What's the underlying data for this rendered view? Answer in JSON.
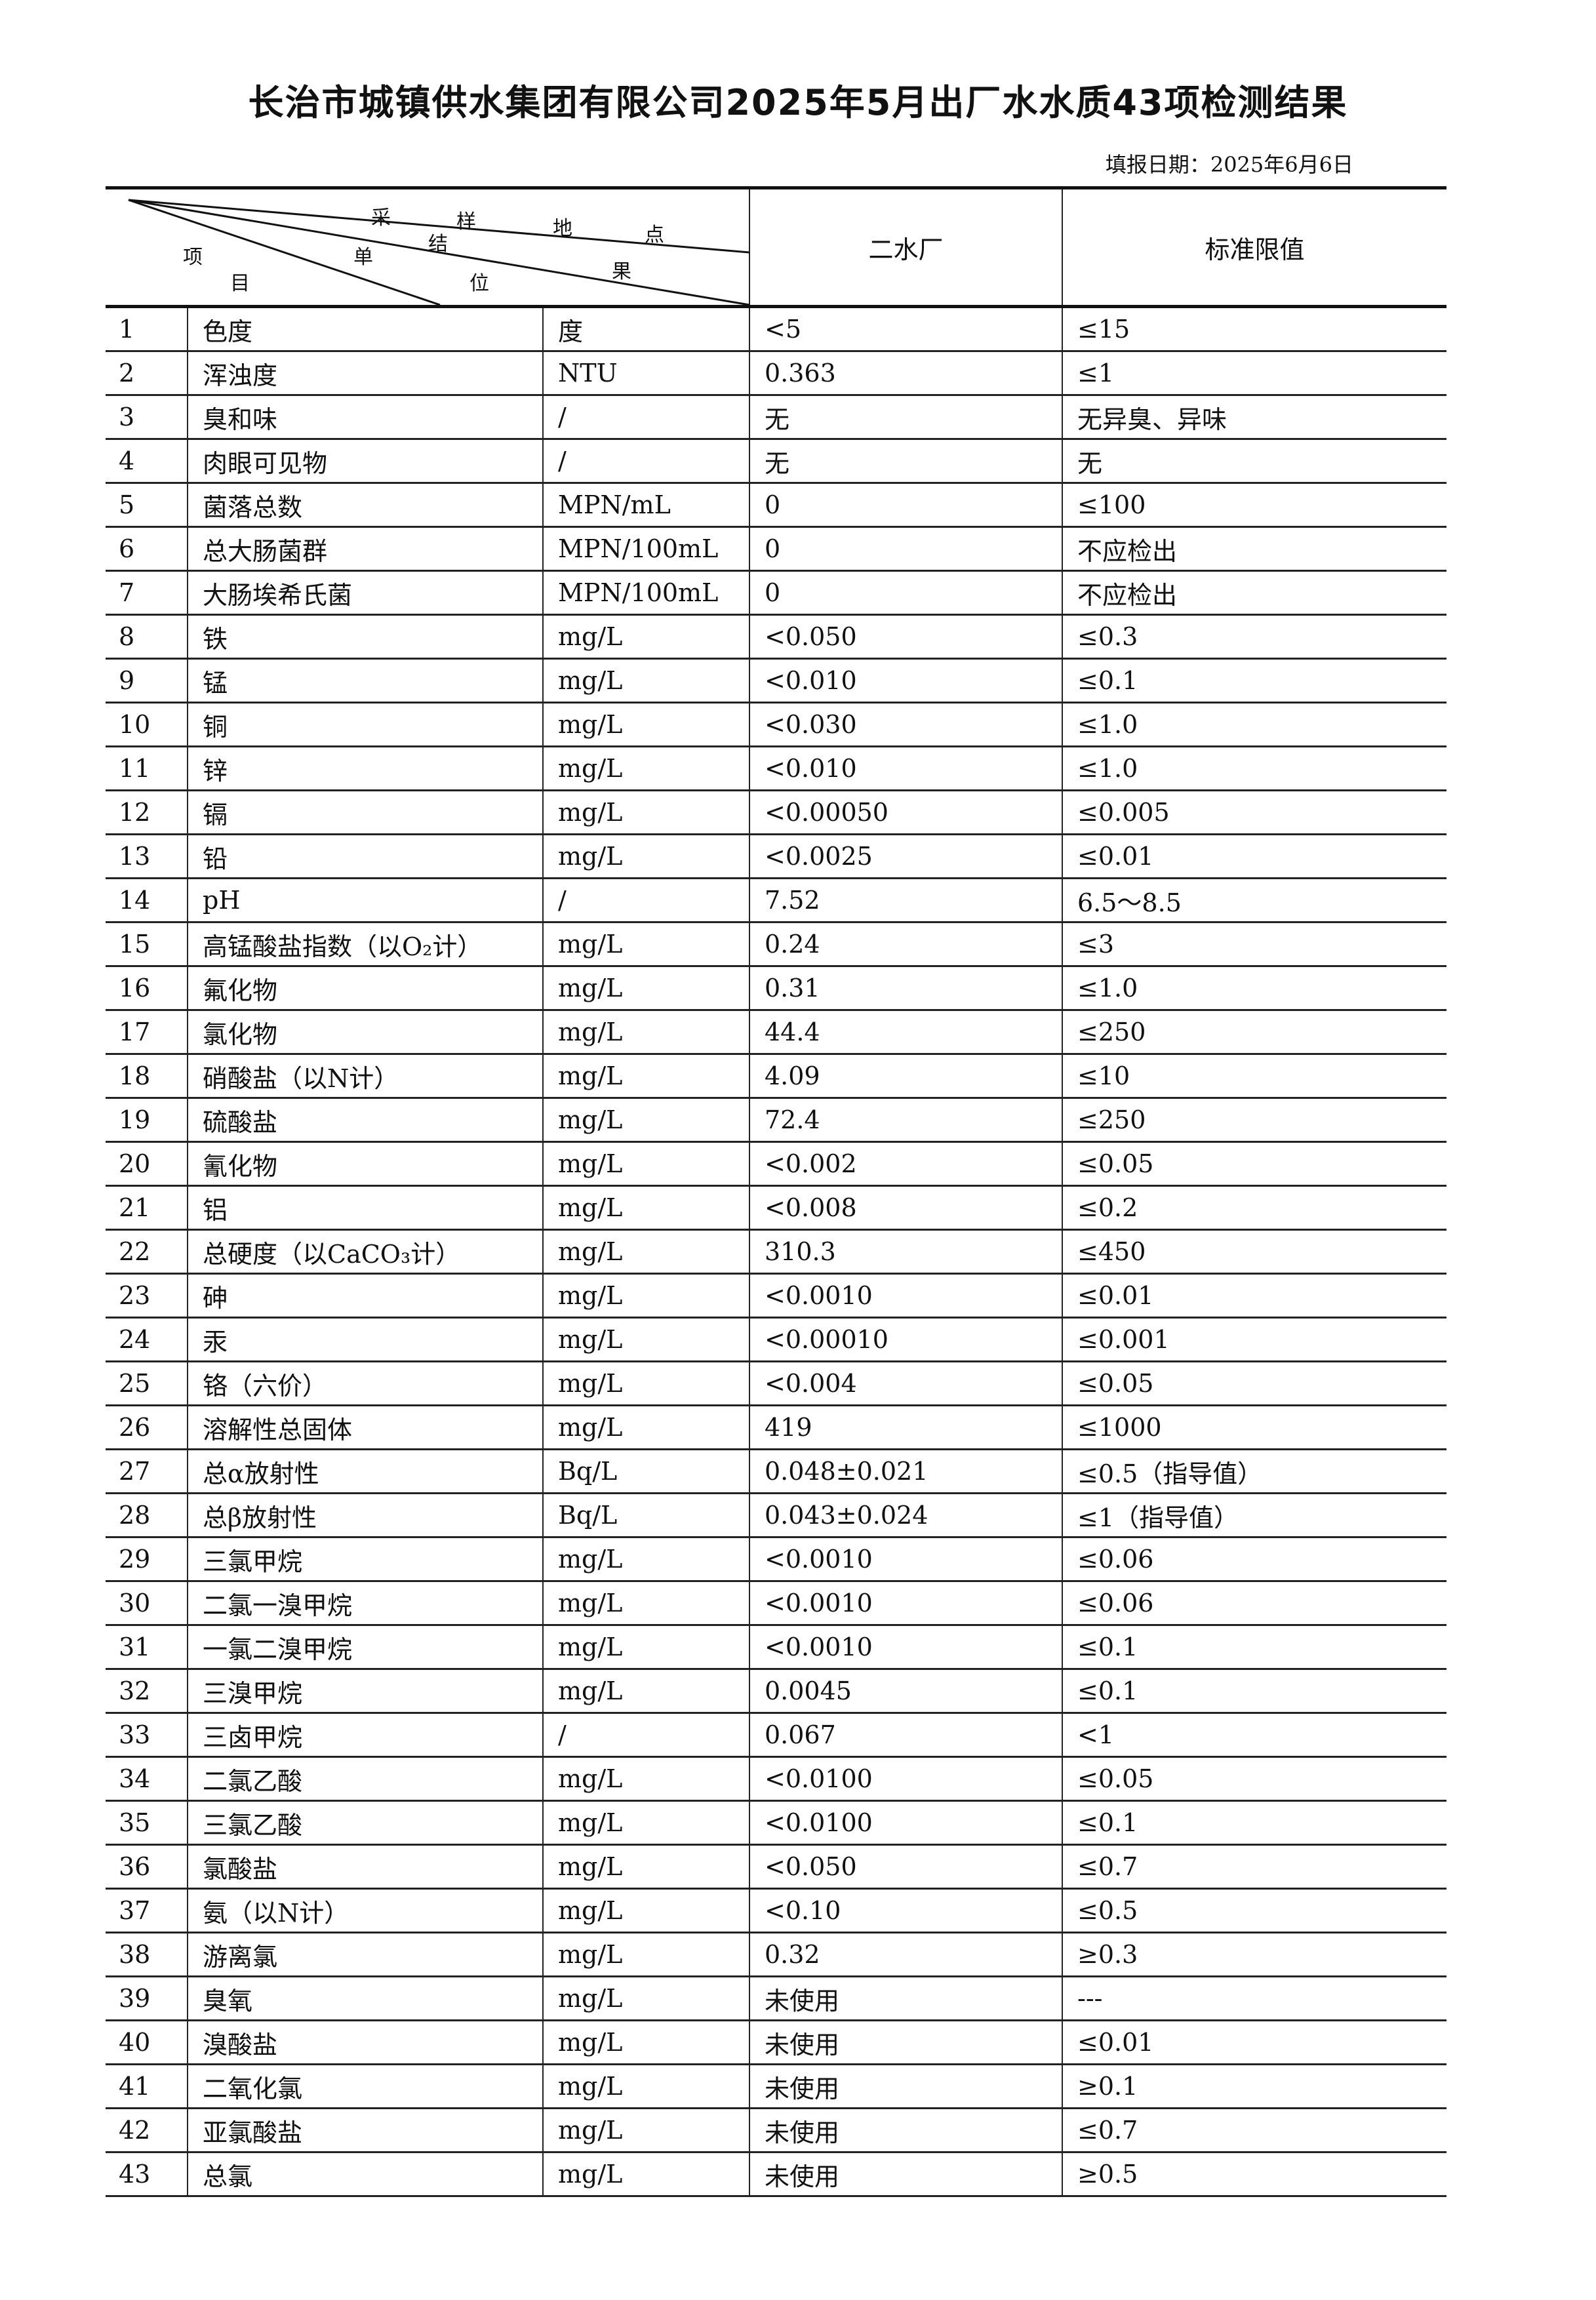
{
  "title": "长治市城镇供水集团有限公司2025年5月出厂水水质43项检测结果",
  "fill_date": "填报日期：2025年6月6日",
  "header": {
    "diag_labels": {
      "sampling_point": [
        "采",
        "样",
        "地",
        "点"
      ],
      "result": [
        "结",
        "果"
      ],
      "unit": [
        "单",
        "位"
      ],
      "item": [
        "项",
        "目"
      ]
    },
    "plant": "二水厂",
    "limit": "标准限值"
  },
  "rows": [
    [
      "1",
      "色度",
      "度",
      "<5",
      "≤15"
    ],
    [
      "2",
      "浑浊度",
      "NTU",
      "0.363",
      "≤1"
    ],
    [
      "3",
      "臭和味",
      "/",
      "无",
      "无异臭、异味"
    ],
    [
      "4",
      "肉眼可见物",
      "/",
      "无",
      "无"
    ],
    [
      "5",
      "菌落总数",
      "MPN/mL",
      "0",
      "≤100"
    ],
    [
      "6",
      "总大肠菌群",
      "MPN/100mL",
      "0",
      "不应检出"
    ],
    [
      "7",
      "大肠埃希氏菌",
      "MPN/100mL",
      "0",
      "不应检出"
    ],
    [
      "8",
      "铁",
      "mg/L",
      "<0.050",
      "≤0.3"
    ],
    [
      "9",
      "锰",
      "mg/L",
      "<0.010",
      "≤0.1"
    ],
    [
      "10",
      "铜",
      "mg/L",
      "<0.030",
      "≤1.0"
    ],
    [
      "11",
      "锌",
      "mg/L",
      "<0.010",
      "≤1.0"
    ],
    [
      "12",
      "镉",
      "mg/L",
      "<0.00050",
      "≤0.005"
    ],
    [
      "13",
      "铅",
      "mg/L",
      "<0.0025",
      "≤0.01"
    ],
    [
      "14",
      "pH",
      "/",
      "7.52",
      "6.5～8.5"
    ],
    [
      "15",
      "高锰酸盐指数（以O₂计）",
      "mg/L",
      "0.24",
      "≤3"
    ],
    [
      "16",
      "氟化物",
      "mg/L",
      "0.31",
      "≤1.0"
    ],
    [
      "17",
      "氯化物",
      "mg/L",
      "44.4",
      "≤250"
    ],
    [
      "18",
      "硝酸盐（以N计）",
      "mg/L",
      "4.09",
      "≤10"
    ],
    [
      "19",
      "硫酸盐",
      "mg/L",
      "72.4",
      "≤250"
    ],
    [
      "20",
      "氰化物",
      "mg/L",
      "<0.002",
      "≤0.05"
    ],
    [
      "21",
      "铝",
      "mg/L",
      "<0.008",
      "≤0.2"
    ],
    [
      "22",
      "总硬度（以CaCO₃计）",
      "mg/L",
      "310.3",
      "≤450"
    ],
    [
      "23",
      "砷",
      "mg/L",
      "<0.0010",
      "≤0.01"
    ],
    [
      "24",
      "汞",
      "mg/L",
      "<0.00010",
      "≤0.001"
    ],
    [
      "25",
      "铬（六价）",
      "mg/L",
      "<0.004",
      "≤0.05"
    ],
    [
      "26",
      "溶解性总固体",
      "mg/L",
      "419",
      "≤1000"
    ],
    [
      "27",
      "总α放射性",
      "Bq/L",
      "0.048±0.021",
      "≤0.5（指导值）"
    ],
    [
      "28",
      "总β放射性",
      "Bq/L",
      "0.043±0.024",
      "≤1（指导值）"
    ],
    [
      "29",
      "三氯甲烷",
      "mg/L",
      "<0.0010",
      "≤0.06"
    ],
    [
      "30",
      "二氯一溴甲烷",
      "mg/L",
      "<0.0010",
      "≤0.06"
    ],
    [
      "31",
      "一氯二溴甲烷",
      "mg/L",
      "<0.0010",
      "≤0.1"
    ],
    [
      "32",
      "三溴甲烷",
      "mg/L",
      "0.0045",
      "≤0.1"
    ],
    [
      "33",
      "三卤甲烷",
      "/",
      "0.067",
      "<1"
    ],
    [
      "34",
      "二氯乙酸",
      "mg/L",
      "<0.0100",
      "≤0.05"
    ],
    [
      "35",
      "三氯乙酸",
      "mg/L",
      "<0.0100",
      "≤0.1"
    ],
    [
      "36",
      "氯酸盐",
      "mg/L",
      "<0.050",
      "≤0.7"
    ],
    [
      "37",
      "氨（以N计）",
      "mg/L",
      "<0.10",
      "≤0.5"
    ],
    [
      "38",
      "游离氯",
      "mg/L",
      "0.32",
      "≥0.3"
    ],
    [
      "39",
      "臭氧",
      "mg/L",
      "未使用",
      "---"
    ],
    [
      "40",
      "溴酸盐",
      "mg/L",
      "未使用",
      "≤0.01"
    ],
    [
      "41",
      "二氧化氯",
      "mg/L",
      "未使用",
      "≥0.1"
    ],
    [
      "42",
      "亚氯酸盐",
      "mg/L",
      "未使用",
      "≤0.7"
    ],
    [
      "43",
      "总氯",
      "mg/L",
      "未使用",
      "≥0.5"
    ]
  ]
}
